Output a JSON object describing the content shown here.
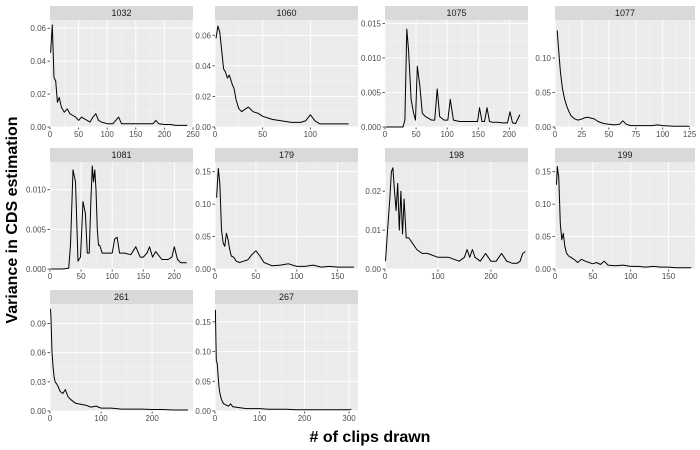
{
  "figure": {
    "xlabel": "# of clips drawn",
    "ylabel": "Variance in CDS estimation"
  },
  "colors": {
    "panel_background": "#ebebeb",
    "grid_major": "#ffffff",
    "strip_background": "#d9d9d9",
    "line": "#000000"
  },
  "chart_data": [
    {
      "type": "line",
      "title": "1032",
      "xlim": [
        0,
        250
      ],
      "ylim": [
        0,
        0.065
      ],
      "xticks": [
        0,
        50,
        100,
        150,
        200,
        250
      ],
      "xtick_labels": [
        "0",
        "50",
        "100",
        "150",
        "200",
        "250"
      ],
      "yticks": [
        0,
        0.02,
        0.04,
        0.06
      ],
      "ytick_labels": [
        "0.00",
        "0.02",
        "0.04",
        "0.06"
      ],
      "x": [
        1,
        4,
        7,
        10,
        13,
        16,
        20,
        25,
        30,
        35,
        40,
        45,
        50,
        55,
        60,
        65,
        70,
        75,
        80,
        85,
        90,
        100,
        110,
        115,
        120,
        125,
        130,
        140,
        150,
        160,
        170,
        180,
        185,
        190,
        200,
        210,
        220,
        230,
        240
      ],
      "y": [
        0.045,
        0.062,
        0.03,
        0.028,
        0.015,
        0.018,
        0.012,
        0.009,
        0.011,
        0.008,
        0.007,
        0.006,
        0.004,
        0.006,
        0.005,
        0.004,
        0.003,
        0.006,
        0.008,
        0.004,
        0.003,
        0.002,
        0.002,
        0.004,
        0.006,
        0.002,
        0.002,
        0.002,
        0.002,
        0.002,
        0.002,
        0.002,
        0.004,
        0.002,
        0.0015,
        0.0015,
        0.001,
        0.001,
        0.001
      ]
    },
    {
      "type": "line",
      "title": "1060",
      "xlim": [
        0,
        150
      ],
      "ylim": [
        0,
        0.07
      ],
      "xticks": [
        0,
        50,
        100
      ],
      "xtick_labels": [
        "0",
        "50",
        "100"
      ],
      "yticks": [
        0,
        0.02,
        0.04,
        0.06
      ],
      "ytick_labels": [
        "0.00",
        "0.02",
        "0.04",
        "0.06"
      ],
      "x": [
        1,
        3,
        5,
        7,
        9,
        11,
        13,
        15,
        18,
        20,
        22,
        25,
        28,
        30,
        35,
        40,
        45,
        50,
        60,
        70,
        80,
        90,
        95,
        100,
        105,
        110,
        120,
        130,
        140
      ],
      "y": [
        0.058,
        0.066,
        0.062,
        0.05,
        0.038,
        0.036,
        0.032,
        0.034,
        0.028,
        0.025,
        0.018,
        0.012,
        0.01,
        0.011,
        0.013,
        0.01,
        0.009,
        0.007,
        0.005,
        0.004,
        0.003,
        0.003,
        0.004,
        0.008,
        0.004,
        0.002,
        0.002,
        0.002,
        0.002
      ]
    },
    {
      "type": "line",
      "title": "1075",
      "xlim": [
        0,
        230
      ],
      "ylim": [
        0,
        0.0155
      ],
      "xticks": [
        0,
        50,
        100,
        150,
        200
      ],
      "xtick_labels": [
        "0",
        "50",
        "100",
        "150",
        "200"
      ],
      "yticks": [
        0,
        0.005,
        0.01,
        0.015
      ],
      "ytick_labels": [
        "0.000",
        "0.005",
        "0.010",
        "0.015"
      ],
      "x": [
        1,
        10,
        20,
        29,
        32,
        35,
        38,
        42,
        46,
        49,
        52,
        56,
        60,
        65,
        75,
        80,
        84,
        88,
        95,
        101,
        105,
        110,
        120,
        140,
        149,
        152,
        156,
        160,
        164,
        168,
        172,
        180,
        190,
        197,
        201,
        205,
        210,
        217
      ],
      "y": [
        0,
        0,
        0,
        0,
        0.001,
        0.0142,
        0.011,
        0.004,
        0.002,
        0.001,
        0.0088,
        0.006,
        0.002,
        0.0015,
        0.001,
        0.001,
        0.0055,
        0.0015,
        0.001,
        0.001,
        0.004,
        0.001,
        0.0008,
        0.0008,
        0.0008,
        0.0028,
        0.0008,
        0.0008,
        0.0028,
        0.0008,
        0.0007,
        0.0007,
        0.0006,
        0.0006,
        0.0022,
        0.0006,
        0.0005,
        0.0018
      ]
    },
    {
      "type": "line",
      "title": "1077",
      "xlim": [
        0,
        130
      ],
      "ylim": [
        0,
        0.155
      ],
      "xticks": [
        0,
        25,
        50,
        75,
        100,
        125
      ],
      "xtick_labels": [
        "0",
        "25",
        "50",
        "75",
        "100",
        "125"
      ],
      "yticks": [
        0,
        0.05,
        0.1
      ],
      "ytick_labels": [
        "0.00",
        "0.05",
        "0.10"
      ],
      "x": [
        2,
        3,
        5,
        7,
        9,
        11,
        13,
        15,
        18,
        21,
        24,
        27,
        30,
        33,
        36,
        40,
        45,
        50,
        55,
        60,
        63,
        66,
        70,
        80,
        90,
        95,
        100,
        110,
        120,
        125
      ],
      "y": [
        0.14,
        0.12,
        0.08,
        0.055,
        0.04,
        0.03,
        0.022,
        0.016,
        0.012,
        0.01,
        0.011,
        0.013,
        0.014,
        0.013,
        0.012,
        0.008,
        0.005,
        0.004,
        0.003,
        0.004,
        0.009,
        0.004,
        0.002,
        0.002,
        0.002,
        0.003,
        0.002,
        0.001,
        0.001,
        0.001
      ]
    },
    {
      "type": "line",
      "title": "1081",
      "xlim": [
        0,
        230
      ],
      "ylim": [
        0,
        0.0135
      ],
      "xticks": [
        0,
        50,
        100,
        150,
        200
      ],
      "xtick_labels": [
        "0",
        "50",
        "100",
        "150",
        "200"
      ],
      "yticks": [
        0,
        0.005,
        0.01
      ],
      "ytick_labels": [
        "0.000",
        "0.005",
        "0.010"
      ],
      "x": [
        1,
        10,
        20,
        30,
        33,
        37,
        41,
        45,
        49,
        53,
        57,
        60,
        63,
        66,
        68,
        70,
        72,
        74,
        76,
        78,
        80,
        84,
        90,
        100,
        104,
        108,
        112,
        120,
        130,
        138,
        145,
        150,
        156,
        160,
        165,
        170,
        180,
        190,
        196,
        200,
        205,
        210,
        220
      ],
      "y": [
        0,
        0,
        0,
        0.0001,
        0.003,
        0.0125,
        0.011,
        0.001,
        0.0015,
        0.0085,
        0.007,
        0.002,
        0.002,
        0.009,
        0.013,
        0.011,
        0.0125,
        0.01,
        0.005,
        0.003,
        0.003,
        0.002,
        0.002,
        0.002,
        0.0038,
        0.004,
        0.002,
        0.002,
        0.0018,
        0.0028,
        0.0015,
        0.0015,
        0.002,
        0.0028,
        0.0015,
        0.0022,
        0.0012,
        0.0012,
        0.0015,
        0.0028,
        0.0012,
        0.0008,
        0.0008
      ]
    },
    {
      "type": "line",
      "title": "179",
      "xlim": [
        0,
        175
      ],
      "ylim": [
        0,
        0.165
      ],
      "xticks": [
        0,
        50,
        100,
        150
      ],
      "xtick_labels": [
        "0",
        "50",
        "100",
        "150"
      ],
      "yticks": [
        0,
        0.05,
        0.1,
        0.15
      ],
      "ytick_labels": [
        "0.00",
        "0.05",
        "0.10",
        "0.15"
      ],
      "x": [
        2,
        4,
        6,
        8,
        10,
        12,
        14,
        16,
        18,
        20,
        23,
        26,
        30,
        35,
        40,
        45,
        50,
        55,
        60,
        70,
        80,
        90,
        100,
        110,
        120,
        130,
        140,
        150,
        160,
        170
      ],
      "y": [
        0.11,
        0.155,
        0.13,
        0.06,
        0.04,
        0.035,
        0.055,
        0.045,
        0.03,
        0.02,
        0.018,
        0.012,
        0.01,
        0.012,
        0.014,
        0.022,
        0.028,
        0.02,
        0.01,
        0.005,
        0.006,
        0.008,
        0.004,
        0.004,
        0.006,
        0.003,
        0.004,
        0.003,
        0.003,
        0.003
      ]
    },
    {
      "type": "line",
      "title": "198",
      "xlim": [
        0,
        270
      ],
      "ylim": [
        0,
        0.0275
      ],
      "xticks": [
        0,
        100,
        200
      ],
      "xtick_labels": [
        "0",
        "100",
        "200"
      ],
      "yticks": [
        0,
        0.01,
        0.02
      ],
      "ytick_labels": [
        "0.00",
        "0.01",
        "0.02"
      ],
      "x": [
        1,
        5,
        9,
        12,
        15,
        18,
        21,
        24,
        27,
        30,
        33,
        36,
        40,
        45,
        50,
        60,
        70,
        80,
        100,
        120,
        140,
        150,
        155,
        160,
        165,
        170,
        180,
        190,
        200,
        210,
        220,
        230,
        240,
        250,
        255,
        260,
        265
      ],
      "y": [
        0.002,
        0.01,
        0.018,
        0.025,
        0.026,
        0.02,
        0.015,
        0.022,
        0.01,
        0.02,
        0.009,
        0.018,
        0.008,
        0.008,
        0.007,
        0.005,
        0.004,
        0.004,
        0.003,
        0.003,
        0.002,
        0.003,
        0.005,
        0.003,
        0.005,
        0.003,
        0.002,
        0.004,
        0.002,
        0.002,
        0.004,
        0.002,
        0.0015,
        0.0015,
        0.002,
        0.004,
        0.0045
      ]
    },
    {
      "type": "line",
      "title": "199",
      "xlim": [
        0,
        185
      ],
      "ylim": [
        0,
        0.165
      ],
      "xticks": [
        0,
        50,
        100,
        150
      ],
      "xtick_labels": [
        "0",
        "50",
        "100",
        "150"
      ],
      "yticks": [
        0,
        0.05,
        0.1,
        0.15
      ],
      "ytick_labels": [
        "0.00",
        "0.05",
        "0.10",
        "0.15"
      ],
      "x": [
        2,
        3,
        5,
        7,
        9,
        11,
        13,
        15,
        18,
        21,
        25,
        30,
        35,
        40,
        45,
        50,
        55,
        60,
        65,
        70,
        80,
        90,
        100,
        110,
        120,
        130,
        140,
        150,
        160,
        170,
        180
      ],
      "y": [
        0.13,
        0.158,
        0.14,
        0.07,
        0.045,
        0.055,
        0.035,
        0.025,
        0.02,
        0.018,
        0.015,
        0.01,
        0.015,
        0.012,
        0.01,
        0.008,
        0.01,
        0.007,
        0.012,
        0.006,
        0.005,
        0.006,
        0.004,
        0.004,
        0.003,
        0.004,
        0.003,
        0.003,
        0.002,
        0.002,
        0.002
      ]
    },
    {
      "type": "line",
      "title": "261",
      "xlim": [
        0,
        280
      ],
      "ylim": [
        0,
        0.11
      ],
      "xticks": [
        0,
        100,
        200
      ],
      "xtick_labels": [
        "0",
        "100",
        "200"
      ],
      "yticks": [
        0,
        0.03,
        0.06,
        0.09
      ],
      "ytick_labels": [
        "0.00",
        "0.03",
        "0.06",
        "0.09"
      ],
      "x": [
        1,
        2,
        4,
        6,
        8,
        10,
        13,
        16,
        20,
        25,
        30,
        35,
        40,
        45,
        50,
        60,
        70,
        80,
        90,
        100,
        120,
        140,
        160,
        180,
        200,
        220,
        240,
        260,
        270
      ],
      "y": [
        0.105,
        0.095,
        0.06,
        0.045,
        0.035,
        0.03,
        0.028,
        0.025,
        0.02,
        0.018,
        0.022,
        0.015,
        0.012,
        0.01,
        0.008,
        0.007,
        0.006,
        0.004,
        0.005,
        0.003,
        0.003,
        0.002,
        0.002,
        0.002,
        0.0015,
        0.0015,
        0.001,
        0.001,
        0.001
      ]
    },
    {
      "type": "line",
      "title": "267",
      "xlim": [
        0,
        320
      ],
      "ylim": [
        0,
        0.18
      ],
      "xticks": [
        0,
        100,
        200,
        300
      ],
      "xtick_labels": [
        "0",
        "100",
        "200",
        "300"
      ],
      "yticks": [
        0,
        0.05,
        0.1,
        0.15
      ],
      "ytick_labels": [
        "0.00",
        "0.05",
        "0.10",
        "0.15"
      ],
      "x": [
        1,
        2,
        3,
        5,
        7,
        9,
        11,
        14,
        17,
        20,
        25,
        30,
        35,
        40,
        50,
        60,
        70,
        80,
        100,
        120,
        140,
        160,
        180,
        200,
        220,
        240,
        260,
        280,
        300,
        305
      ],
      "y": [
        0.17,
        0.12,
        0.085,
        0.08,
        0.06,
        0.04,
        0.03,
        0.02,
        0.015,
        0.012,
        0.01,
        0.008,
        0.012,
        0.007,
        0.006,
        0.005,
        0.004,
        0.004,
        0.004,
        0.003,
        0.003,
        0.003,
        0.002,
        0.002,
        0.002,
        0.002,
        0.002,
        0.002,
        0.002,
        0.003
      ]
    }
  ]
}
